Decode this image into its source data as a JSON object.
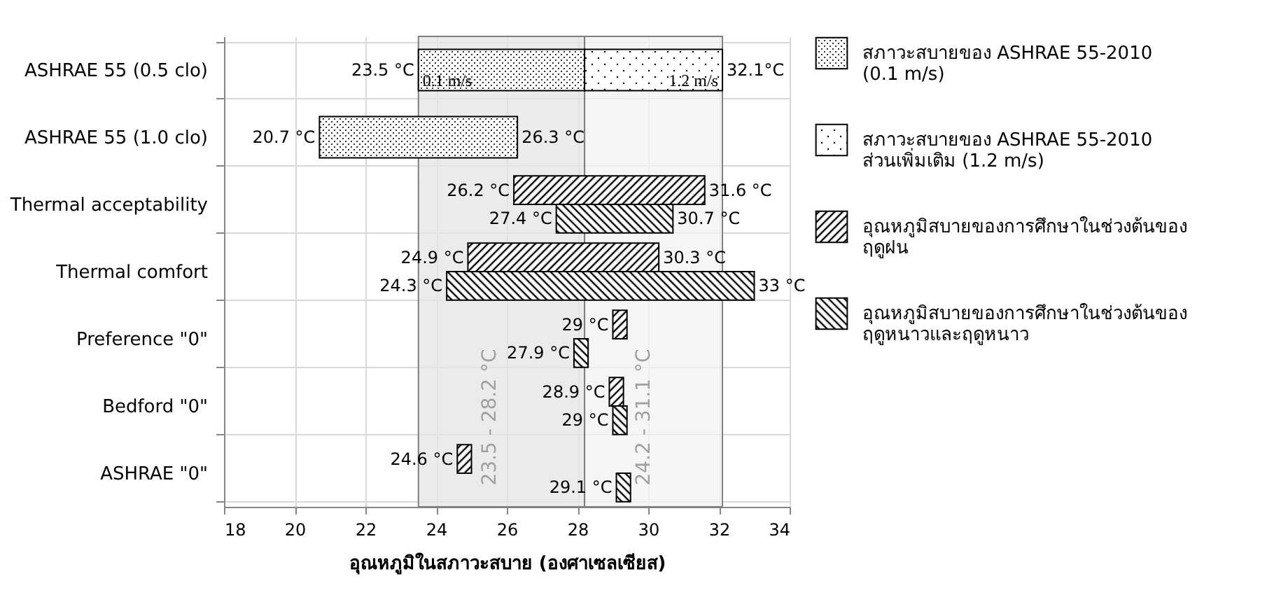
{
  "chart_data": {
    "type": "bar",
    "orientation": "horizontal",
    "xlabel": "อุณหภูมิในสภาวะสบาย (องศาเซลเซียส)",
    "categories": [
      "ASHRAE 55 (0.5 clo)",
      "ASHRAE 55 (1.0 clo)",
      "Thermal acceptability",
      "Thermal comfort",
      "Preference \"0\"",
      "Bedford \"0\"",
      "ASHRAE \"0\""
    ],
    "series": [
      {
        "name": "สภาวะสบายของ ASHRAE 55-2010 (0.1 m/s)",
        "color": "#000000",
        "base": [
          23.5,
          20.7,
          null,
          null,
          null,
          null,
          null
        ],
        "values": [
          4.7,
          5.6,
          null,
          null,
          null,
          null,
          null
        ]
      },
      {
        "name": "สภาวะสบายของ ASHRAE 55-2010 ส่วนเพิ่มเติม (1.2 m/s)",
        "color": "#000000",
        "base": [
          28.2,
          null,
          null,
          null,
          null,
          null,
          null
        ],
        "values": [
          3.9,
          null,
          null,
          null,
          null,
          null,
          null
        ]
      },
      {
        "name": "อุณหภูมิสบายของการศึกษาในช่วงต้นของฤดูฝน",
        "color": "#000000",
        "base": [
          null,
          null,
          26.2,
          24.9,
          29,
          28.9,
          24.6
        ],
        "values": [
          null,
          null,
          5.4,
          5.4,
          0.4,
          0.4,
          0.4
        ]
      },
      {
        "name": "อุณหภูมิสบายของการศึกษาในช่วงต้นของฤดูหนาวและฤดูหนาว",
        "color": "#000000",
        "base": [
          null,
          null,
          27.4,
          24.3,
          27.9,
          29,
          29.1
        ],
        "values": [
          null,
          null,
          3.3,
          8.7,
          0.4,
          0.4,
          0.4
        ]
      }
    ],
    "annotations": [
      {
        "text": "23.5 °C",
        "x": 23.5,
        "y": "ASHRAE 55 (0.5 clo)"
      },
      {
        "text": "32.1°C",
        "x": 32.1,
        "y": "ASHRAE 55 (0.5 clo)"
      },
      {
        "text": "20.7 °C",
        "x": 20.7,
        "y": "ASHRAE 55 (1.0 clo)"
      },
      {
        "text": "26.3 °C",
        "x": 26.3,
        "y": "ASHRAE 55 (1.0 clo)"
      },
      {
        "text": "26.2 °C",
        "x": 26.2,
        "y": "Thermal acceptability"
      },
      {
        "text": "31.6 °C",
        "x": 31.6,
        "y": "Thermal acceptability"
      },
      {
        "text": "27.4 °C",
        "x": 27.4,
        "y": "Thermal acceptability"
      },
      {
        "text": "30.7 °C",
        "x": 30.7,
        "y": "Thermal acceptability"
      },
      {
        "text": "24.9 °C",
        "x": 24.9,
        "y": "Thermal comfort"
      },
      {
        "text": "30.3 °C",
        "x": 30.3,
        "y": "Thermal comfort"
      },
      {
        "text": "24.3 °C",
        "x": 24.3,
        "y": "Thermal comfort"
      },
      {
        "text": "33 °C",
        "x": 33,
        "y": "Thermal comfort"
      },
      {
        "text": "29 °C",
        "x": 29,
        "y": "Preference \"0\""
      },
      {
        "text": "27.9 °C",
        "x": 27.9,
        "y": "Preference \"0\""
      },
      {
        "text": "28.9 °C",
        "x": 28.9,
        "y": "Bedford \"0\""
      },
      {
        "text": "29 °C",
        "x": 29,
        "y": "Bedford \"0\""
      },
      {
        "text": "24.6 °C",
        "x": 24.6,
        "y": "ASHRAE \"0\""
      },
      {
        "text": "29.1 °C",
        "x": 29.1,
        "y": "ASHRAE \"0\""
      },
      "0.1 m/s",
      "1.2 m/s"
    ],
    "bands": [
      {
        "axis": "x",
        "from": 23.5,
        "to": 28.2,
        "label": "23.5 - 28.2 °C",
        "color": "#e4e4e4"
      },
      {
        "axis": "x",
        "from": 28.2,
        "to": 32.1,
        "label": "24.2 - 31.1 °C",
        "color": "#f2f2f2"
      }
    ],
    "xlim": [
      18,
      34
    ],
    "xticks": [
      18,
      20,
      22,
      24,
      26,
      28,
      30,
      32,
      34
    ],
    "grid": true,
    "legend": "right"
  }
}
